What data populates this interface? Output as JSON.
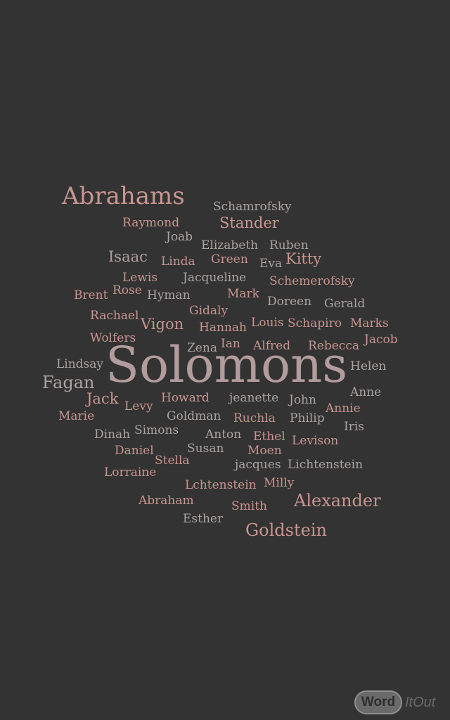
{
  "words": {
    "abrahams": "Abrahams",
    "schamrofsky": "Schamrofsky",
    "raymond": "Raymond",
    "stander": "Stander",
    "joab": "Joab",
    "elizabeth": "Elizabeth",
    "ruben": "Ruben",
    "isaac": "Isaac",
    "linda": "Linda",
    "green": "Green",
    "eva": "Eva",
    "kitty": "Kitty",
    "lewis": "Lewis",
    "jacqueline": "Jacqueline",
    "brent": "Brent",
    "rose": "Rose",
    "hyman": "Hyman",
    "mark": "Mark",
    "schemerofsky": "Schemerofsky",
    "doreen": "Doreen",
    "gerald": "Gerald",
    "rachael": "Rachael",
    "gidaly": "Gidaly",
    "vigon": "Vigon",
    "hannah": "Hannah",
    "louis": "Louis",
    "schapiro": "Schapiro",
    "marks": "Marks",
    "wolfers": "Wolfers",
    "zena": "Zena",
    "ian": "Ian",
    "alfred": "Alfred",
    "rebecca": "Rebecca",
    "jacob": "Jacob",
    "lindsay": "Lindsay",
    "solomons": "Solomons",
    "helen": "Helen",
    "fagan": "Fagan",
    "anne": "Anne",
    "jack": "Jack",
    "howard": "Howard",
    "jeanette": "jeanette",
    "john": "John",
    "levy": "Levy",
    "annie": "Annie",
    "marie": "Marie",
    "goldman": "Goldman",
    "ruchla": "Ruchla",
    "philip": "Philip",
    "iris": "Iris",
    "dinah": "Dinah",
    "simons": "Simons",
    "anton": "Anton",
    "ethel": "Ethel",
    "levison": "Levison",
    "daniel": "Daniel",
    "susan": "Susan",
    "moen": "Moen",
    "stella": "Stella",
    "jacques": "jacques",
    "lichtenstein": "Lichtenstein",
    "lorraine": "Lorraine",
    "milly": "Milly",
    "lchtenstein": "Lchtenstein",
    "abraham": "Abraham",
    "alexander": "Alexander",
    "smith": "Smith",
    "esther": "Esther",
    "goldstein": "Goldstein"
  },
  "logo": {
    "word": "Word",
    "itout": "ItOut"
  },
  "colors": {
    "background": "#333333",
    "pink": "#c89590",
    "gray": "#aaa4a2",
    "mauve": "#b39c9d"
  }
}
